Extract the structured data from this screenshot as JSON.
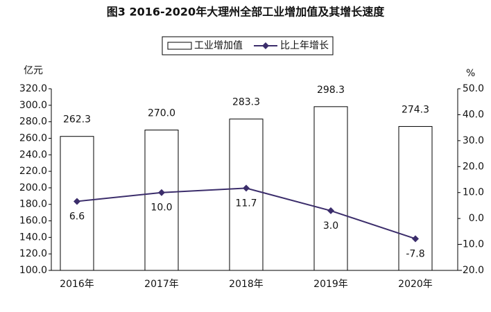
{
  "chart_data": {
    "type": "bar",
    "title": "图3  2016-2020年大理州全部工业增加值及其增长速度",
    "y_label": "亿元",
    "y2_label": "%",
    "categories": [
      "2016年",
      "2017年",
      "2018年",
      "2019年",
      "2020年"
    ],
    "series": [
      {
        "name": "工业增加值",
        "type": "bar",
        "color": "#ffffff",
        "edgecolor": "#000000",
        "values": [
          262.3,
          270.0,
          283.3,
          298.3,
          274.3
        ],
        "value_labels": [
          "262.3",
          "270.0",
          "283.3",
          "298.3",
          "274.3"
        ]
      },
      {
        "name": "比上年增长",
        "type": "line",
        "axis": "y2",
        "color": "#3b2d6b",
        "values": [
          6.6,
          10.0,
          11.7,
          3.0,
          -7.8
        ],
        "value_labels": [
          "6.6",
          "10.0",
          "11.7",
          "3.0",
          "-7.8"
        ]
      }
    ],
    "ylim": [
      100,
      320
    ],
    "yticks": [
      {
        "value": 100,
        "label": "100.0"
      },
      {
        "value": 120,
        "label": "120.0"
      },
      {
        "value": 140,
        "label": "140.0"
      },
      {
        "value": 160,
        "label": "160.0"
      },
      {
        "value": 180,
        "label": "180.0"
      },
      {
        "value": 200,
        "label": "200.0"
      },
      {
        "value": 220,
        "label": "220.0"
      },
      {
        "value": 240,
        "label": "240.0"
      },
      {
        "value": 260,
        "label": "260.0"
      },
      {
        "value": 280,
        "label": "280.0"
      },
      {
        "value": 300,
        "label": "300.0"
      },
      {
        "value": 320,
        "label": "320.0"
      }
    ],
    "y2lim": [
      -20,
      50
    ],
    "y2ticks": [
      {
        "value": -20,
        "label": "-20.0"
      },
      {
        "value": -10,
        "label": "-10.0"
      },
      {
        "value": 0,
        "label": "0.0"
      },
      {
        "value": 10,
        "label": "10.0"
      },
      {
        "value": 20,
        "label": "20.0"
      },
      {
        "value": 30,
        "label": "30.0"
      },
      {
        "value": 40,
        "label": "40.0"
      },
      {
        "value": 50,
        "label": "50.0"
      }
    ],
    "legend": "top"
  }
}
